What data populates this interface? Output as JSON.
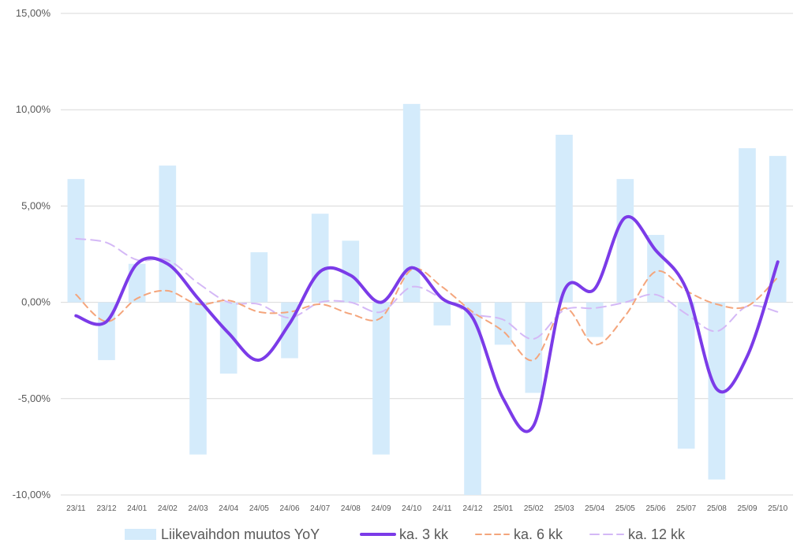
{
  "chart_data": {
    "type": "bar",
    "title": "",
    "xlabel": "",
    "ylabel": "",
    "ylim": [
      -10,
      15
    ],
    "y_ticks": [
      15,
      10,
      5,
      0,
      -5,
      -10
    ],
    "y_tick_labels": [
      "15,00%",
      "10,00%",
      "5,00%",
      "0,00%",
      "-5,00%",
      "-10,00%"
    ],
    "grid": true,
    "legend_position": "bottom",
    "categories": [
      "23/11",
      "23/12",
      "24/01",
      "24/02",
      "24/03",
      "24/04",
      "24/05",
      "24/06",
      "24/07",
      "24/08",
      "24/09",
      "24/10",
      "24/11",
      "24/12",
      "25/01",
      "25/02",
      "25/03",
      "25/04",
      "25/05",
      "25/06",
      "25/07",
      "25/08",
      "25/09",
      "25/10"
    ],
    "series": [
      {
        "name": "Liikevaihdon muutos YoY",
        "type": "bar",
        "color": "#d4ebfb",
        "values": [
          6.4,
          -3.0,
          2.0,
          7.1,
          -7.9,
          -3.7,
          2.6,
          -2.9,
          4.6,
          3.2,
          -7.9,
          10.3,
          -1.2,
          -10.1,
          -2.2,
          -4.7,
          8.7,
          -1.8,
          6.4,
          3.5,
          -7.6,
          -9.2,
          8.0,
          7.6
        ]
      },
      {
        "name": "ka. 3 kk",
        "type": "line",
        "style": "solid",
        "color": "#7b3be8",
        "values": [
          -0.7,
          -1.0,
          2.0,
          2.0,
          0.2,
          -1.6,
          -3.0,
          -1.1,
          1.6,
          1.4,
          0.0,
          1.8,
          0.2,
          -0.8,
          -5.0,
          -6.4,
          0.6,
          0.7,
          4.4,
          2.7,
          0.7,
          -4.5,
          -2.8,
          2.1
        ]
      },
      {
        "name": "ka. 6 kk",
        "type": "line",
        "style": "dashed",
        "color": "#f4a57c",
        "values": [
          0.4,
          -1.0,
          0.2,
          0.6,
          -0.1,
          0.1,
          -0.5,
          -0.5,
          -0.1,
          -0.6,
          -0.8,
          1.7,
          0.8,
          -0.5,
          -1.5,
          -3.0,
          -0.3,
          -2.2,
          -0.7,
          1.6,
          0.6,
          -0.1,
          -0.2,
          1.3
        ]
      },
      {
        "name": "ka. 12 kk",
        "type": "line",
        "style": "dashed",
        "color": "#d4b8f6",
        "values": [
          3.3,
          3.1,
          2.2,
          2.2,
          1.0,
          0.0,
          -0.1,
          -0.8,
          0.0,
          0.0,
          -0.5,
          0.8,
          0.2,
          -0.6,
          -0.9,
          -1.9,
          -0.4,
          -0.3,
          0.0,
          0.4,
          -0.6,
          -1.5,
          -0.2,
          -0.5
        ]
      }
    ]
  }
}
